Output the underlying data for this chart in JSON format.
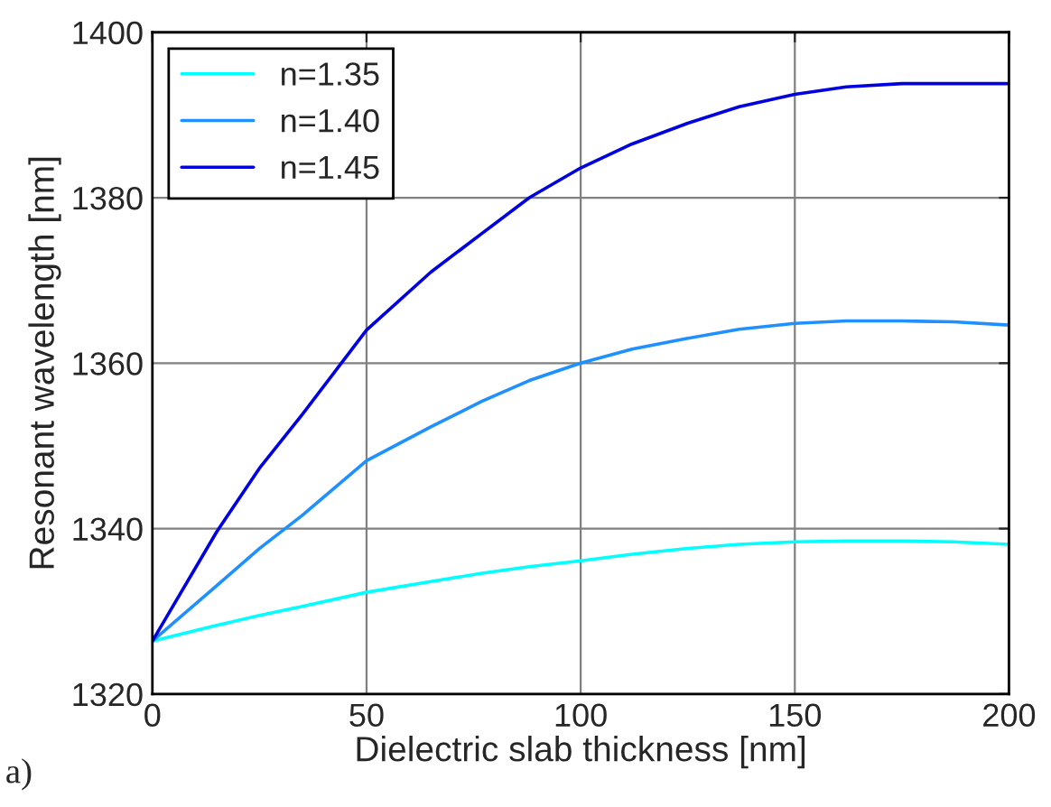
{
  "chart_data": {
    "type": "line",
    "xlabel": "Dielectric slab thickness [nm]",
    "ylabel": "Resonant wavelength [nm]",
    "annotations": [
      "a)"
    ],
    "x": [
      0,
      15,
      25,
      35,
      50,
      65,
      77,
      88,
      100,
      112,
      125,
      137,
      150,
      162,
      175,
      187,
      200
    ],
    "series": [
      {
        "name": "n=1.35",
        "color": "#00ffff",
        "values": [
          1326.4,
          1328.3,
          1329.5,
          1330.6,
          1332.3,
          1333.6,
          1334.6,
          1335.4,
          1336.1,
          1336.9,
          1337.6,
          1338.1,
          1338.4,
          1338.5,
          1338.5,
          1338.4,
          1338.1
        ]
      },
      {
        "name": "n=1.40",
        "color": "#1e90ff",
        "values": [
          1326.4,
          1333.1,
          1337.6,
          1341.6,
          1348.2,
          1352.3,
          1355.4,
          1357.9,
          1360.0,
          1361.7,
          1363.0,
          1364.1,
          1364.8,
          1365.1,
          1365.1,
          1365.0,
          1364.6
        ]
      },
      {
        "name": "n=1.45",
        "color": "#0000e0",
        "values": [
          1326.4,
          1339.6,
          1347.3,
          1353.8,
          1364.0,
          1371.0,
          1375.7,
          1380.0,
          1383.6,
          1386.5,
          1389.0,
          1391.0,
          1392.5,
          1393.4,
          1393.8,
          1393.8,
          1393.8
        ]
      }
    ],
    "xlim": [
      0,
      200
    ],
    "ylim": [
      1320,
      1400
    ],
    "xticks": [
      0,
      50,
      100,
      150,
      200
    ],
    "yticks": [
      1320,
      1340,
      1360,
      1380,
      1400
    ],
    "grid": true,
    "legend": "top left",
    "marker": "none",
    "line_style": "solid"
  }
}
